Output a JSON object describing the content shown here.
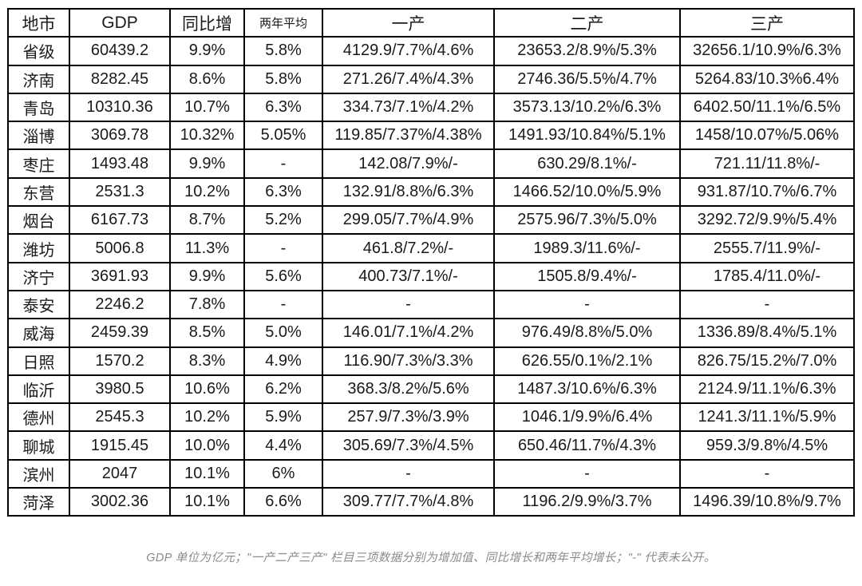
{
  "chart_data": {
    "type": "table",
    "columns": [
      "地市",
      "GDP",
      "同比增",
      "两年平均",
      "一产",
      "二产",
      "三产"
    ],
    "rows": [
      [
        "省级",
        "60439.2",
        "9.9%",
        "5.8%",
        "4129.9/7.7%/4.6%",
        "23653.2/8.9%/5.3%",
        "32656.1/10.9%/6.3%"
      ],
      [
        "济南",
        "8282.45",
        "8.6%",
        "5.8%",
        "271.26/7.4%/4.3%",
        "2746.36/5.5%/4.7%",
        "5264.83/10.3%6.4%"
      ],
      [
        "青岛",
        "10310.36",
        "10.7%",
        "6.3%",
        "334.73/7.1%/4.2%",
        "3573.13/10.2%/6.3%",
        "6402.50/11.1%/6.5%"
      ],
      [
        "淄博",
        "3069.78",
        "10.32%",
        "5.05%",
        "119.85/7.37%/4.38%",
        "1491.93/10.84%/5.1%",
        "1458/10.07%/5.06%"
      ],
      [
        "枣庄",
        "1493.48",
        "9.9%",
        "-",
        "142.08/7.9%/-",
        "630.29/8.1%/-",
        "721.11/11.8%/-"
      ],
      [
        "东营",
        "2531.3",
        "10.2%",
        "6.3%",
        "132.91/8.8%/6.3%",
        "1466.52/10.0%/5.9%",
        "931.87/10.7%/6.7%"
      ],
      [
        "烟台",
        "6167.73",
        "8.7%",
        "5.2%",
        "299.05/7.7%/4.9%",
        "2575.96/7.3%/5.0%",
        "3292.72/9.9%/5.4%"
      ],
      [
        "潍坊",
        "5006.8",
        "11.3%",
        "-",
        "461.8/7.2%/-",
        "1989.3/11.6%/-",
        "2555.7/11.9%/-"
      ],
      [
        "济宁",
        "3691.93",
        "9.9%",
        "5.6%",
        "400.73/7.1%/-",
        "1505.8/9.4%/-",
        "1785.4/11.0%/-"
      ],
      [
        "泰安",
        "2246.2",
        "7.8%",
        "-",
        "-",
        "-",
        "-"
      ],
      [
        "威海",
        "2459.39",
        "8.5%",
        "5.0%",
        "146.01/7.1%/4.2%",
        "976.49/8.8%/5.0%",
        "1336.89/8.4%/5.1%"
      ],
      [
        "日照",
        "1570.2",
        "8.3%",
        "4.9%",
        "116.90/7.3%/3.3%",
        "626.55/0.1%/2.1%",
        "826.75/15.2%/7.0%"
      ],
      [
        "临沂",
        "3980.5",
        "10.6%",
        "6.2%",
        "368.3/8.2%/5.6%",
        "1487.3/10.6%/6.3%",
        "2124.9/11.1%/6.3%"
      ],
      [
        "德州",
        "2545.3",
        "10.2%",
        "5.9%",
        "257.9/7.3%/3.9%",
        "1046.1/9.9%/6.4%",
        "1241.3/11.1%/5.9%"
      ],
      [
        "聊城",
        "1915.45",
        "10.0%",
        "4.4%",
        "305.69/7.3%/4.5%",
        "650.46/11.7%/4.3%",
        "959.3/9.8%/4.5%"
      ],
      [
        "滨州",
        "2047",
        "10.1%",
        "6%",
        "-",
        "-",
        "-"
      ],
      [
        "菏泽",
        "3002.36",
        "10.1%",
        "6.6%",
        "309.77/7.7%/4.8%",
        "1196.2/9.9%/3.7%",
        "1496.39/10.8%/9.7%"
      ]
    ],
    "footnote": "GDP 单位为亿元；\"一产二产三产\" 栏目三项数据分别为增加值、同比增长和两年平均增长；\"-\" 代表未公开。"
  },
  "colors": {
    "background": "#ffffff",
    "table_border": "#000000",
    "cell_text": "#1a1a1a",
    "footnote_text": "#8a8a8a"
  }
}
